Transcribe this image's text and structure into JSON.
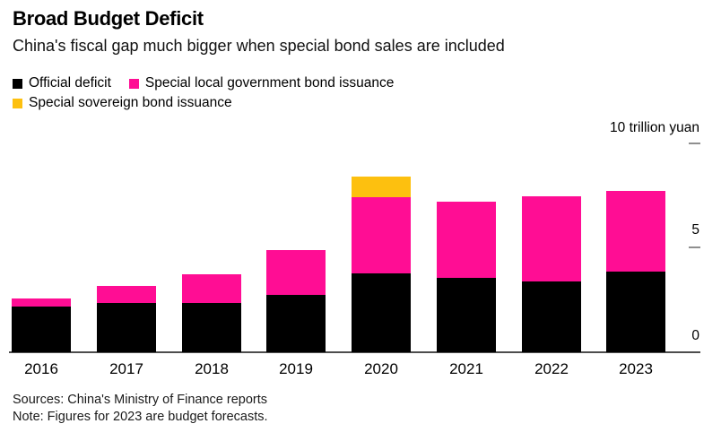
{
  "header": {
    "title": "Broad Budget Deficit",
    "subtitle": "China's fiscal gap much bigger when special bond sales are included"
  },
  "legend": [
    {
      "label": "Official deficit",
      "color": "#000000"
    },
    {
      "label": "Special local government bond issuance",
      "color": "#ff0d94"
    },
    {
      "label": "Special sovereign bond issuance",
      "color": "#fdc00f"
    }
  ],
  "y_axis": {
    "unit_label": "10 trillion yuan",
    "mid_tick_label": "5",
    "zero_label": "0"
  },
  "footer": {
    "sources": "Sources: China's Ministry of Finance reports",
    "note": "Note: Figures for 2023 are budget forecasts."
  },
  "chart_data": {
    "type": "bar",
    "stacked": true,
    "title": "Broad Budget Deficit",
    "subtitle": "China's fiscal gap much bigger when special bond sales are included",
    "categories": [
      "2016",
      "2017",
      "2018",
      "2019",
      "2020",
      "2021",
      "2022",
      "2023"
    ],
    "series": [
      {
        "name": "Official deficit",
        "color": "#000000",
        "values": [
          2.18,
          2.38,
          2.38,
          2.76,
          3.76,
          3.57,
          3.37,
          3.88
        ]
      },
      {
        "name": "Special local government bond issuance",
        "color": "#ff0d94",
        "values": [
          0.4,
          0.8,
          1.35,
          2.15,
          3.65,
          3.65,
          4.1,
          3.85
        ]
      },
      {
        "name": "Special sovereign bond issuance",
        "color": "#fdc00f",
        "values": [
          0,
          0,
          0,
          0,
          1.0,
          0,
          0,
          0
        ]
      }
    ],
    "xlabel": "",
    "ylabel": "trillion yuan",
    "yticks": [
      0,
      5,
      10
    ],
    "ylim": [
      0,
      10.4
    ],
    "grid": false,
    "legend_position": "top-left"
  }
}
